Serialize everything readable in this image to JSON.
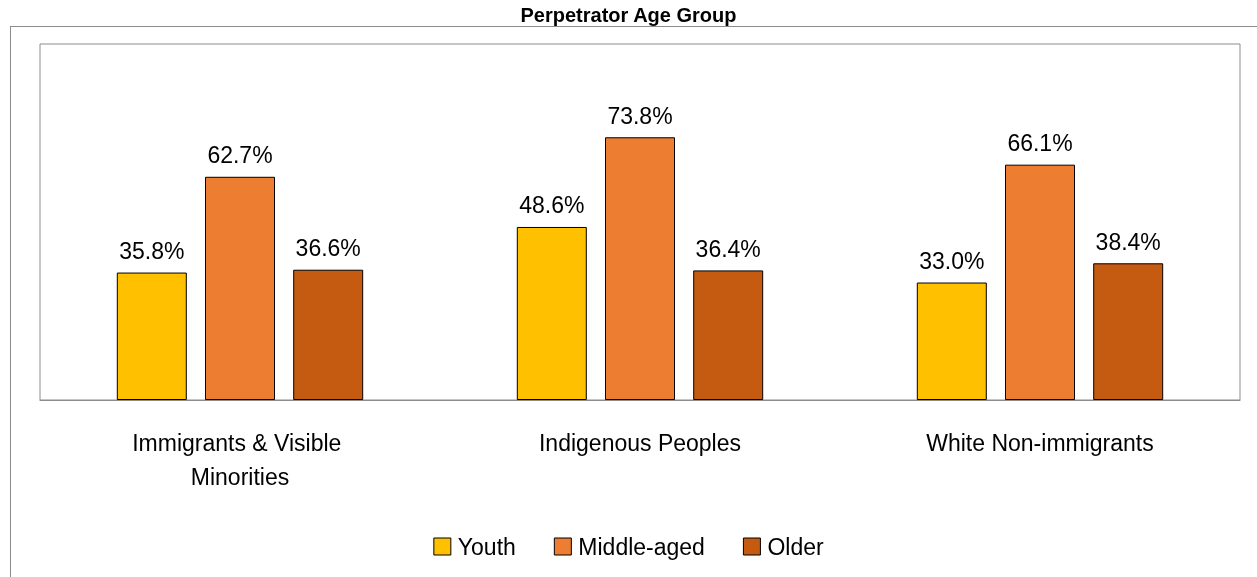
{
  "chart_data": {
    "type": "bar",
    "title": "Perpetrator Age Group",
    "categories": [
      "Immigrants & Visible Minorities",
      "Indigenous Peoples",
      "White Non-immigrants"
    ],
    "series": [
      {
        "name": "Youth",
        "color": "#ffc000",
        "values": [
          35.8,
          48.6,
          33.0
        ],
        "value_labels": [
          "35.8%",
          "48.6%",
          "33.0%"
        ]
      },
      {
        "name": "Middle-aged",
        "color": "#ed7d31",
        "values": [
          62.7,
          73.8,
          66.1
        ],
        "value_labels": [
          "62.7%",
          "73.8%",
          "66.1%"
        ]
      },
      {
        "name": "Older",
        "color": "#c55a11",
        "values": [
          36.6,
          36.4,
          38.4
        ],
        "value_labels": [
          "36.6%",
          "36.4%",
          "38.4%"
        ]
      }
    ],
    "ylim": [
      0,
      100
    ],
    "legend": "bottom",
    "grid": false
  }
}
